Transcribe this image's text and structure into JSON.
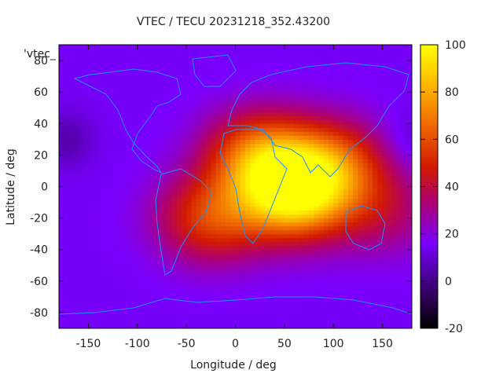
{
  "chart_data": {
    "type": "heatmap",
    "title": "VTEC / TECU 20231218_352.43200",
    "xlabel": "Longitude / deg",
    "ylabel": "Latitude / deg",
    "xlim": [
      -180,
      180
    ],
    "ylim": [
      -90,
      90
    ],
    "xticks": [
      -150,
      -100,
      -50,
      0,
      50,
      100,
      150
    ],
    "yticks": [
      -80,
      -60,
      -40,
      -20,
      0,
      20,
      40,
      60,
      80
    ],
    "colorbar": {
      "min": -20,
      "max": 100,
      "ticks": [
        -20,
        0,
        20,
        40,
        60,
        80,
        100
      ],
      "palette": [
        "#000000",
        "#3a0070",
        "#7a00ff",
        "#b0006e",
        "#d21a00",
        "#f06a00",
        "#ffc400",
        "#ffff00"
      ]
    },
    "legend_label": "'vtec_",
    "grid": false,
    "background_level_tecu": 15,
    "maxima": [
      {
        "lon": 60,
        "lat": -5,
        "value": 90
      },
      {
        "lon": 25,
        "lat": 20,
        "value": 65
      },
      {
        "lon": -25,
        "lat": -20,
        "value": 55
      },
      {
        "lon": 100,
        "lat": 15,
        "value": 55
      },
      {
        "lon": 150,
        "lat": -15,
        "value": 35
      }
    ],
    "minima": [
      {
        "lon": -170,
        "lat": 30,
        "value": 5
      },
      {
        "lon": 175,
        "lat": 30,
        "value": 8
      }
    ],
    "coastline_color": "#1e90ff"
  }
}
